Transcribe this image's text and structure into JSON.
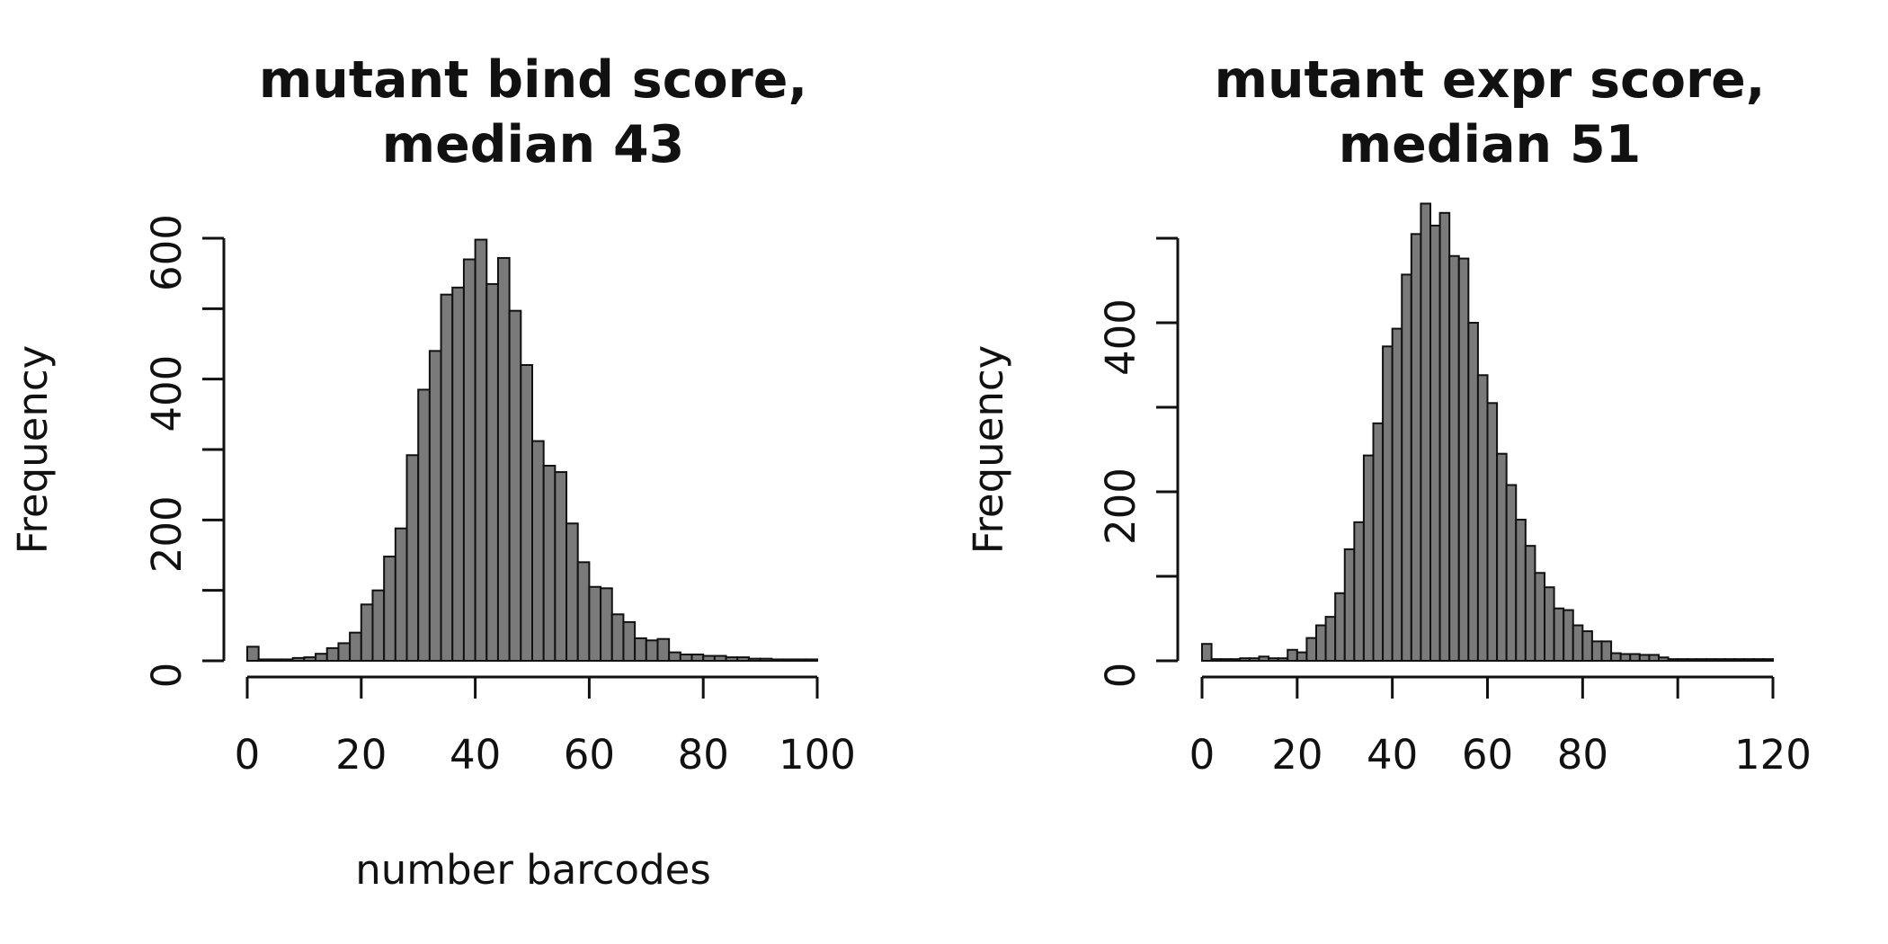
{
  "chart_data": [
    {
      "type": "bar",
      "subtype": "histogram",
      "title_line1": "mutant bind score,",
      "title_line2": "median 43",
      "xlabel": "number barcodes",
      "ylabel": "Frequency",
      "bin_width": 2,
      "bin_start": 0,
      "xlim": [
        0,
        100
      ],
      "ylim": [
        0,
        600
      ],
      "xticks": [
        0,
        20,
        40,
        60,
        80,
        100
      ],
      "yticks": [
        0,
        100,
        200,
        300,
        400,
        500,
        600
      ],
      "ytick_labels": [
        "0",
        "",
        "200",
        "",
        "400",
        "",
        "600"
      ],
      "values": [
        20,
        2,
        2,
        2,
        4,
        5,
        10,
        18,
        25,
        40,
        80,
        100,
        148,
        188,
        292,
        385,
        440,
        520,
        530,
        570,
        598,
        535,
        572,
        497,
        420,
        312,
        277,
        268,
        195,
        140,
        105,
        103,
        66,
        55,
        32,
        29,
        31,
        12,
        9,
        9,
        7,
        7,
        5,
        5,
        3,
        3,
        2,
        2,
        2,
        2
      ]
    },
    {
      "type": "bar",
      "subtype": "histogram",
      "title_line1": "mutant expr score,",
      "title_line2": "median 51",
      "xlabel": "",
      "ylabel": "Frequency",
      "bin_width": 2,
      "bin_start": 0,
      "xlim": [
        0,
        120
      ],
      "ylim": [
        0,
        500
      ],
      "xticks": [
        0,
        20,
        40,
        60,
        80,
        100,
        120
      ],
      "xtick_labels": [
        "0",
        "20",
        "40",
        "60",
        "80",
        "",
        "120"
      ],
      "yticks": [
        0,
        100,
        200,
        300,
        400,
        500
      ],
      "ytick_labels": [
        "0",
        "",
        "200",
        "",
        "400",
        ""
      ],
      "values": [
        20,
        2,
        2,
        2,
        3,
        3,
        5,
        3,
        3,
        13,
        10,
        27,
        42,
        52,
        80,
        132,
        164,
        243,
        281,
        372,
        393,
        457,
        505,
        541,
        515,
        530,
        479,
        476,
        400,
        338,
        305,
        245,
        208,
        167,
        136,
        104,
        87,
        62,
        60,
        42,
        35,
        23,
        23,
        9,
        8,
        8,
        7,
        7,
        4,
        2,
        2,
        2,
        2,
        2,
        2,
        2,
        2,
        2,
        2,
        2
      ]
    }
  ]
}
